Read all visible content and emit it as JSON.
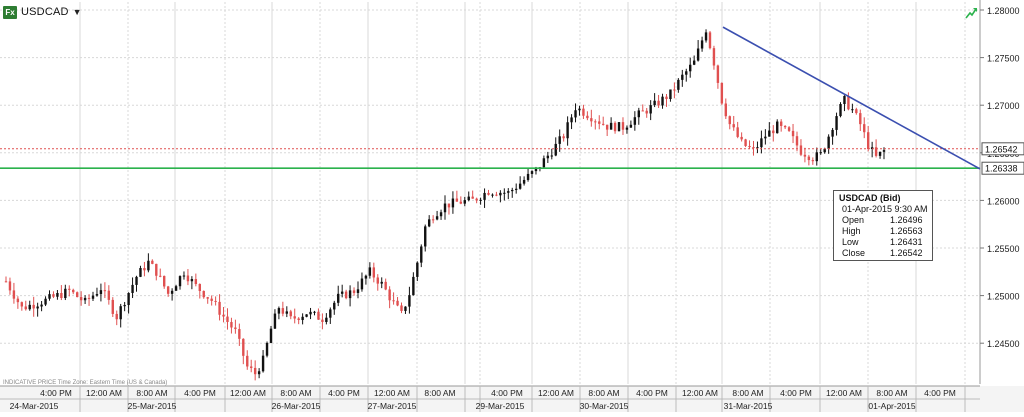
{
  "header": {
    "symbol": "USDCAD",
    "icon": "fx-icon",
    "menu_icon": "caret-down-icon"
  },
  "corner_icon": "chart-trend-icon",
  "footnote": "INDICATIVE PRICE    Time Zone: Eastern Time (US & Canada)",
  "tooltip": {
    "title": "USDCAD (Bid)",
    "time": "01-Apr-2015 9:30 AM",
    "rows": [
      {
        "label": "Open",
        "value": "1.26496"
      },
      {
        "label": "High",
        "value": "1.26563"
      },
      {
        "label": "Low",
        "value": "1.26431"
      },
      {
        "label": "Close",
        "value": "1.26542"
      }
    ]
  },
  "colors": {
    "up": "#111111",
    "down": "#e05050",
    "support": "#2bb24c",
    "trend": "#3b4fb0",
    "last_price": "#e05050"
  },
  "chart_data": {
    "type": "candlestick",
    "title": "USDCAD",
    "x_time_labels": [
      "4:00 PM",
      "12:00 AM",
      "8:00 AM",
      "4:00 PM",
      "12:00 AM",
      "8:00 AM",
      "4:00 PM",
      "12:00 AM",
      "8:00 AM",
      "4:00 PM",
      "12:00 AM",
      "8:00 AM",
      "4:00 PM",
      "12:00 AM",
      "8:00 AM",
      "4:00 PM",
      "12:00 AM",
      "8:00 AM",
      "4:00 PM"
    ],
    "x_date_labels": [
      "24-Mar-2015",
      "25-Mar-2015",
      "26-Mar-2015",
      "27-Mar-2015",
      "29-Mar-2015",
      "30-Mar-2015",
      "31-Mar-2015",
      "01-Apr-2015"
    ],
    "y_ticks": [
      "1.28000",
      "1.27500",
      "1.27000",
      "1.26500",
      "1.26000",
      "1.25500",
      "1.25000",
      "1.24500"
    ],
    "y_tick_values": [
      1.28,
      1.275,
      1.27,
      1.265,
      1.26,
      1.255,
      1.25,
      1.245
    ],
    "ylim": [
      1.2407,
      1.2815
    ],
    "grid": true,
    "last_price_label": "1.26542",
    "last_price": 1.26542,
    "support_label": "1.26338",
    "support": 1.26338,
    "trendline": {
      "from": 1.2782,
      "to": 1.2633
    },
    "price_path": [
      [
        0,
        1.2515
      ],
      [
        4,
        1.2487
      ],
      [
        10,
        1.2495
      ],
      [
        16,
        1.2505
      ],
      [
        20,
        1.2493
      ],
      [
        24,
        1.2508
      ],
      [
        28,
        1.2478
      ],
      [
        30,
        1.2495
      ],
      [
        33,
        1.252
      ],
      [
        36,
        1.2535
      ],
      [
        38,
        1.2525
      ],
      [
        41,
        1.2502
      ],
      [
        45,
        1.2525
      ],
      [
        48,
        1.251
      ],
      [
        52,
        1.2495
      ],
      [
        55,
        1.2478
      ],
      [
        58,
        1.2462
      ],
      [
        61,
        1.2425
      ],
      [
        63,
        1.2418
      ],
      [
        65,
        1.2432
      ],
      [
        67,
        1.2465
      ],
      [
        69,
        1.2488
      ],
      [
        72,
        1.2475
      ],
      [
        76,
        1.2482
      ],
      [
        80,
        1.2476
      ],
      [
        84,
        1.2498
      ],
      [
        88,
        1.2505
      ],
      [
        92,
        1.2525
      ],
      [
        95,
        1.2512
      ],
      [
        98,
        1.2492
      ],
      [
        100,
        1.248
      ],
      [
        102,
        1.2502
      ],
      [
        104,
        1.2535
      ],
      [
        106,
        1.2572
      ],
      [
        108,
        1.2585
      ],
      [
        111,
        1.2595
      ],
      [
        114,
        1.2598
      ],
      [
        118,
        1.26
      ],
      [
        122,
        1.261
      ],
      [
        127,
        1.2608
      ],
      [
        130,
        1.2618
      ],
      [
        134,
        1.2632
      ],
      [
        138,
        1.2652
      ],
      [
        141,
        1.2668
      ],
      [
        144,
        1.2698
      ],
      [
        148,
        1.2688
      ],
      [
        152,
        1.2678
      ],
      [
        156,
        1.2677
      ],
      [
        160,
        1.269
      ],
      [
        164,
        1.27
      ],
      [
        168,
        1.2712
      ],
      [
        171,
        1.273
      ],
      [
        174,
        1.2745
      ],
      [
        177,
        1.278
      ],
      [
        179,
        1.2745
      ],
      [
        181,
        1.2705
      ],
      [
        183,
        1.268
      ],
      [
        186,
        1.266
      ],
      [
        189,
        1.2652
      ],
      [
        192,
        1.2668
      ],
      [
        195,
        1.2678
      ],
      [
        198,
        1.267
      ],
      [
        201,
        1.2652
      ],
      [
        204,
        1.2645
      ],
      [
        206,
        1.2648
      ],
      [
        208,
        1.2668
      ],
      [
        210,
        1.269
      ],
      [
        212,
        1.2705
      ],
      [
        214,
        1.2695
      ],
      [
        216,
        1.268
      ],
      [
        218,
        1.2658
      ],
      [
        220,
        1.2645
      ],
      [
        222,
        1.2652
      ]
    ]
  }
}
